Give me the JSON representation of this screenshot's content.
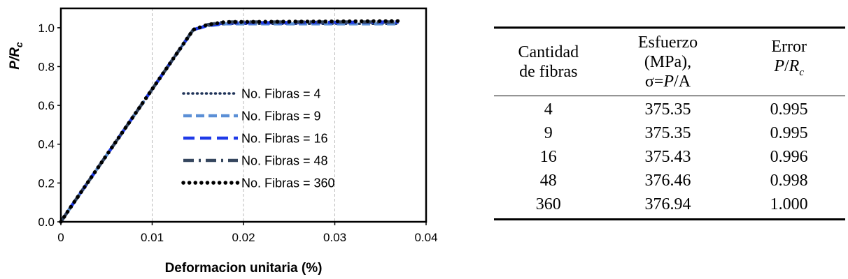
{
  "chart_data": {
    "type": "line",
    "xlabel": "Deformacion unitaria (%)",
    "ylabel": {
      "main": "P/R",
      "sub": "c"
    },
    "xlim": [
      0,
      0.04
    ],
    "ylim": [
      0,
      1.1
    ],
    "xticks": [
      0,
      0.01,
      0.02,
      0.03,
      0.04
    ],
    "xtick_labels": [
      "0",
      "0.01",
      "0.02",
      "0.03",
      "0.04"
    ],
    "yticks": [
      0,
      0.2,
      0.4,
      0.6,
      0.8,
      1.0
    ],
    "ytick_labels": [
      "0.0",
      "0.2",
      "0.4",
      "0.6",
      "0.8",
      "1.0"
    ],
    "grid": "vertical dashed",
    "legend_position": "center-bottom",
    "series": [
      {
        "name": "No. Fibras = 4",
        "color": "#1f3358",
        "style": "dotted",
        "x": [
          0,
          0.001,
          0.0145,
          0.016,
          0.018,
          0.037
        ],
        "y": [
          0,
          0.07,
          0.99,
          1.01,
          1.02,
          1.02
        ]
      },
      {
        "name": "No. Fibras = 9",
        "color": "#5b8fd6",
        "style": "dashed",
        "x": [
          0,
          0.001,
          0.0145,
          0.016,
          0.018,
          0.037
        ],
        "y": [
          0,
          0.07,
          0.99,
          1.01,
          1.02,
          1.02
        ]
      },
      {
        "name": "No. Fibras = 16",
        "color": "#1f3ae8",
        "style": "long-dashed",
        "x": [
          0,
          0.001,
          0.0145,
          0.016,
          0.018,
          0.037
        ],
        "y": [
          0,
          0.07,
          0.99,
          1.01,
          1.025,
          1.03
        ]
      },
      {
        "name": "No. Fibras = 48",
        "color": "#35465e",
        "style": "dash-dot",
        "x": [
          0,
          0.001,
          0.0145,
          0.016,
          0.018,
          0.037
        ],
        "y": [
          0,
          0.07,
          0.99,
          1.015,
          1.03,
          1.03
        ]
      },
      {
        "name": "No. Fibras = 360",
        "color": "#000000",
        "style": "round-dotted",
        "x": [
          0,
          0.001,
          0.0145,
          0.016,
          0.018,
          0.037
        ],
        "y": [
          0,
          0.07,
          0.99,
          1.015,
          1.03,
          1.035
        ]
      }
    ]
  },
  "table": {
    "headers": {
      "col1": {
        "line1": "Cantidad",
        "line2": "de fibras"
      },
      "col2": {
        "line1": "Esfuerzo",
        "line2": "(MPa),",
        "line3_pre": "σ=",
        "line3_var": "P",
        "line3_post": "/A"
      },
      "col3": {
        "line1": "Error",
        "line2_var": "P",
        "line2_sep": "/",
        "line2_var2": "R",
        "line2_sub": "c"
      }
    },
    "rows": [
      [
        "4",
        "375.35",
        "0.995"
      ],
      [
        "9",
        "375.35",
        "0.995"
      ],
      [
        "16",
        "375.43",
        "0.996"
      ],
      [
        "48",
        "376.46",
        "0.998"
      ],
      [
        "360",
        "376.94",
        "1.000"
      ]
    ]
  }
}
